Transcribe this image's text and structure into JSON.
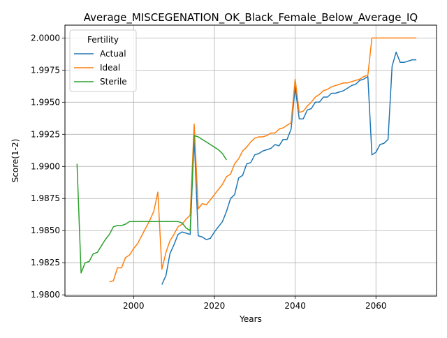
{
  "chart_data": {
    "type": "line",
    "title": "Average_MISCEGENATION_OK_Black_Female_Below_Average_IQ",
    "xlabel": "Years",
    "ylabel": "Score(1-2)",
    "xlim": [
      1983,
      2075
    ],
    "ylim": [
      1.9799,
      2.001
    ],
    "x_ticks": [
      2000,
      2020,
      2040,
      2060
    ],
    "y_ticks": [
      1.98,
      1.9825,
      1.985,
      1.9875,
      1.99,
      1.9925,
      1.995,
      1.9975,
      2.0
    ],
    "y_tick_labels": [
      "1.9800",
      "1.9825",
      "1.9850",
      "1.9875",
      "1.9900",
      "1.9925",
      "1.9950",
      "1.9975",
      "2.0000"
    ],
    "x_tick_labels": [
      "2000",
      "2020",
      "2040",
      "2060"
    ],
    "grid": true,
    "legend": {
      "title": "Fertility",
      "placement": "upper-left"
    },
    "series": [
      {
        "name": "Actual",
        "color": "#1f77b4",
        "x": [
          2007,
          2008,
          2009,
          2010,
          2011,
          2012,
          2013,
          2014,
          2015,
          2016,
          2017,
          2018,
          2019,
          2020,
          2021,
          2022,
          2023,
          2024,
          2025,
          2026,
          2027,
          2028,
          2029,
          2030,
          2031,
          2032,
          2033,
          2034,
          2035,
          2036,
          2037,
          2038,
          2039,
          2040,
          2041,
          2042,
          2043,
          2044,
          2045,
          2046,
          2047,
          2048,
          2049,
          2050,
          2051,
          2052,
          2053,
          2054,
          2055,
          2056,
          2057,
          2058,
          2059,
          2060,
          2061,
          2062,
          2063,
          2064,
          2065,
          2066,
          2067,
          2068,
          2069,
          2070
        ],
        "values": [
          1.9808,
          1.9815,
          1.9832,
          1.9839,
          1.9847,
          1.9849,
          1.9848,
          1.9847,
          1.9923,
          1.9846,
          1.9845,
          1.9843,
          1.9844,
          1.9849,
          1.9853,
          1.9857,
          1.9865,
          1.9875,
          1.9878,
          1.9891,
          1.9893,
          1.9902,
          1.9903,
          1.9909,
          1.991,
          1.9912,
          1.9913,
          1.9914,
          1.9917,
          1.9916,
          1.9921,
          1.9921,
          1.9929,
          1.9962,
          1.9937,
          1.9937,
          1.9944,
          1.9945,
          1.995,
          1.995,
          1.9954,
          1.9954,
          1.9957,
          1.9957,
          1.9958,
          1.9959,
          1.9961,
          1.9963,
          1.9964,
          1.9967,
          1.9968,
          1.997,
          1.9909,
          1.9911,
          1.9917,
          1.9918,
          1.9921,
          1.9978,
          1.9989,
          1.9981,
          1.9981,
          1.9982,
          1.9983,
          1.9983
        ]
      },
      {
        "name": "Ideal",
        "color": "#ff7f0e",
        "x": [
          1994,
          1995,
          1996,
          1997,
          1998,
          1999,
          2000,
          2001,
          2002,
          2003,
          2004,
          2005,
          2006,
          2007,
          2008,
          2009,
          2010,
          2011,
          2012,
          2013,
          2014,
          2015,
          2016,
          2017,
          2018,
          2019,
          2020,
          2021,
          2022,
          2023,
          2024,
          2025,
          2026,
          2027,
          2028,
          2029,
          2030,
          2031,
          2032,
          2033,
          2034,
          2035,
          2036,
          2037,
          2038,
          2039,
          2040,
          2041,
          2042,
          2043,
          2044,
          2045,
          2046,
          2047,
          2048,
          2049,
          2050,
          2051,
          2052,
          2053,
          2054,
          2055,
          2056,
          2057,
          2058,
          2059,
          2060,
          2061,
          2062,
          2063,
          2064,
          2065,
          2066,
          2067,
          2068,
          2069,
          2070
        ],
        "values": [
          1.981,
          1.9811,
          1.9821,
          1.9821,
          1.9829,
          1.9831,
          1.9836,
          1.984,
          1.9846,
          1.9852,
          1.9858,
          1.9865,
          1.988,
          1.982,
          1.9833,
          1.9842,
          1.9847,
          1.9853,
          1.9855,
          1.9859,
          1.9862,
          1.9933,
          1.9867,
          1.9871,
          1.987,
          1.9874,
          1.9878,
          1.9882,
          1.9886,
          1.9892,
          1.9894,
          1.9902,
          1.9906,
          1.9912,
          1.9915,
          1.9919,
          1.9922,
          1.9923,
          1.9923,
          1.9924,
          1.9926,
          1.9926,
          1.9929,
          1.993,
          1.9932,
          1.9934,
          1.9968,
          1.9942,
          1.9943,
          1.9947,
          1.995,
          1.9954,
          1.9956,
          1.9959,
          1.996,
          1.9962,
          1.9963,
          1.9964,
          1.9965,
          1.9965,
          1.9966,
          1.9967,
          1.9968,
          1.997,
          1.9971,
          2.0,
          2.0,
          2.0,
          2.0,
          2.0,
          2.0,
          2.0,
          2.0,
          2.0,
          2.0,
          2.0,
          2.0
        ]
      },
      {
        "name": "Sterile",
        "color": "#2ca02c",
        "x": [
          1986,
          1987,
          1988,
          1989,
          1990,
          1991,
          1992,
          1993,
          1994,
          1995,
          1996,
          1997,
          1998,
          1999,
          2000,
          2001,
          2002,
          2003,
          2004,
          2005,
          2006,
          2007,
          2008,
          2009,
          2010,
          2011,
          2012,
          2013,
          2014,
          2015,
          2016,
          2017,
          2018,
          2019,
          2020,
          2021,
          2022,
          2023
        ],
        "values": [
          1.9902,
          1.9817,
          1.9825,
          1.9826,
          1.9832,
          1.9833,
          1.9838,
          1.9843,
          1.9847,
          1.9853,
          1.9854,
          1.9854,
          1.9855,
          1.9857,
          1.9857,
          1.9857,
          1.9857,
          1.9857,
          1.9857,
          1.9857,
          1.9857,
          1.9857,
          1.9857,
          1.9857,
          1.9857,
          1.9857,
          1.9856,
          1.9852,
          1.985,
          1.9924,
          1.9923,
          1.9921,
          1.9919,
          1.9917,
          1.9915,
          1.9913,
          1.991,
          1.9905
        ]
      }
    ]
  }
}
